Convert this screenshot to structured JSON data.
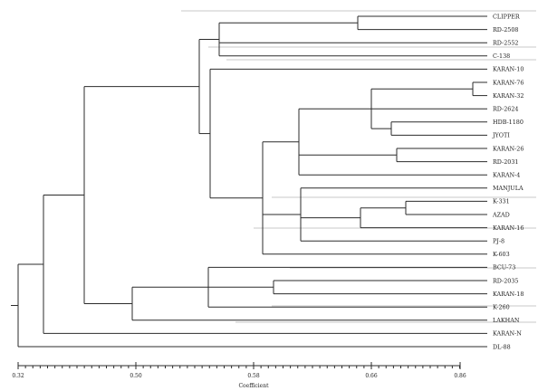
{
  "dendrogram": {
    "axis_title": "Coefficient",
    "axis_ticks": [
      "0.32",
      "0.50",
      "0.58",
      "0.66",
      "0.86"
    ],
    "leaves": [
      "CLIPPER",
      "RD-2508",
      "RD-2552",
      "C-138",
      "KARAN-10",
      "KARAN-76",
      "KARAN-32",
      "RD-2624",
      "HDB-1180",
      "JYOTI",
      "KARAN-26",
      "RD-2031",
      "KARAN-4",
      "MANJULA",
      "K-331",
      "AZAD",
      "KARAN-16",
      "PJ-8",
      "K-603",
      "BCU-73",
      "RD-2035",
      "KARAN-18",
      "K-260",
      "LAKHAN",
      "KARAN-N",
      "DL-88"
    ]
  }
}
